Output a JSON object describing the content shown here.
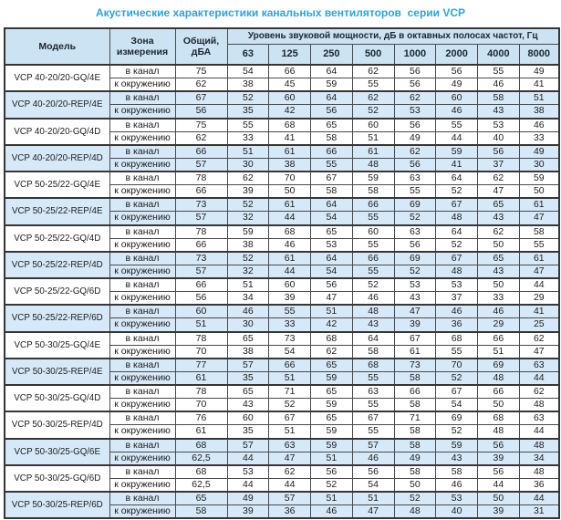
{
  "title": "Акустические характеристики канальных вентиляторов  серии VCP",
  "colors": {
    "title_text": "#2aa4de",
    "header_background": "#cbe3f3",
    "shaded_row_background": "#d6e9f8",
    "plain_row_background": "#ffffff",
    "border": "#4a4a4a",
    "text": "#1d1d1d"
  },
  "table": {
    "headers": {
      "model": "Модель",
      "zone": "Зона измерения",
      "total": "Общий, дБА",
      "band_title": "Уровень звуковой мощности, дБ в октавных полосах частот, Гц",
      "frequencies": [
        "63",
        "125",
        "250",
        "500",
        "1000",
        "2000",
        "4000",
        "8000"
      ]
    },
    "zone_labels": {
      "duct": "в канал",
      "ambient": "к окружению"
    },
    "rows": [
      {
        "model": "VCP 40-20/20-GQ/4E",
        "shaded": false,
        "duct": {
          "total": "75",
          "bands": [
            "54",
            "66",
            "64",
            "62",
            "56",
            "56",
            "55",
            "49"
          ]
        },
        "ambient": {
          "total": "62",
          "bands": [
            "38",
            "45",
            "59",
            "55",
            "56",
            "49",
            "46",
            "41"
          ]
        }
      },
      {
        "model": "VCP 40-20/20-REP/4E",
        "shaded": true,
        "duct": {
          "total": "67",
          "bands": [
            "52",
            "60",
            "64",
            "62",
            "62",
            "60",
            "58",
            "51"
          ]
        },
        "ambient": {
          "total": "56",
          "bands": [
            "35",
            "42",
            "56",
            "52",
            "53",
            "46",
            "43",
            "38"
          ]
        }
      },
      {
        "model": "VCP 40-20/20-GQ/4D",
        "shaded": false,
        "duct": {
          "total": "75",
          "bands": [
            "55",
            "68",
            "65",
            "60",
            "56",
            "55",
            "53",
            "46"
          ]
        },
        "ambient": {
          "total": "62",
          "bands": [
            "33",
            "41",
            "58",
            "51",
            "49",
            "44",
            "40",
            "33"
          ]
        }
      },
      {
        "model": "VCP 40-20/20-REP/4D",
        "shaded": true,
        "duct": {
          "total": "66",
          "bands": [
            "51",
            "61",
            "66",
            "61",
            "62",
            "59",
            "56",
            "49"
          ]
        },
        "ambient": {
          "total": "57",
          "bands": [
            "30",
            "38",
            "55",
            "48",
            "56",
            "41",
            "37",
            "30"
          ]
        }
      },
      {
        "model": "VCP 50-25/22-GQ/4E",
        "shaded": false,
        "duct": {
          "total": "78",
          "bands": [
            "62",
            "70",
            "67",
            "59",
            "63",
            "64",
            "62",
            "59"
          ]
        },
        "ambient": {
          "total": "66",
          "bands": [
            "39",
            "50",
            "58",
            "58",
            "55",
            "52",
            "47",
            "50"
          ]
        }
      },
      {
        "model": "VCP 50-25/22-REP/4E",
        "shaded": true,
        "duct": {
          "total": "73",
          "bands": [
            "52",
            "61",
            "64",
            "66",
            "69",
            "67",
            "65",
            "61"
          ]
        },
        "ambient": {
          "total": "57",
          "bands": [
            "32",
            "44",
            "54",
            "55",
            "52",
            "48",
            "43",
            "47"
          ]
        }
      },
      {
        "model": "VCP 50-25/22-GQ/4D",
        "shaded": false,
        "duct": {
          "total": "78",
          "bands": [
            "59",
            "68",
            "65",
            "60",
            "63",
            "64",
            "62",
            "58"
          ]
        },
        "ambient": {
          "total": "66",
          "bands": [
            "38",
            "46",
            "53",
            "55",
            "56",
            "52",
            "50",
            "55"
          ]
        }
      },
      {
        "model": "VCP 50-25/22-REP/4D",
        "shaded": true,
        "duct": {
          "total": "73",
          "bands": [
            "52",
            "61",
            "64",
            "66",
            "69",
            "67",
            "65",
            "61"
          ]
        },
        "ambient": {
          "total": "57",
          "bands": [
            "32",
            "44",
            "54",
            "55",
            "52",
            "48",
            "43",
            "47"
          ]
        }
      },
      {
        "model": "VCP 50-25/22-GQ/6D",
        "shaded": false,
        "duct": {
          "total": "66",
          "bands": [
            "51",
            "60",
            "56",
            "52",
            "53",
            "53",
            "50",
            "44"
          ]
        },
        "ambient": {
          "total": "56",
          "bands": [
            "34",
            "39",
            "47",
            "46",
            "43",
            "37",
            "33",
            "29"
          ]
        }
      },
      {
        "model": "VCP 50-25/22-REP/6D",
        "shaded": true,
        "duct": {
          "total": "60",
          "bands": [
            "46",
            "55",
            "51",
            "48",
            "47",
            "46",
            "46",
            "41"
          ]
        },
        "ambient": {
          "total": "51",
          "bands": [
            "30",
            "33",
            "42",
            "43",
            "39",
            "36",
            "29",
            "25"
          ]
        }
      },
      {
        "model": "VCP 50-30/25-GQ/4E",
        "shaded": false,
        "duct": {
          "total": "78",
          "bands": [
            "65",
            "73",
            "68",
            "64",
            "67",
            "68",
            "66",
            "62"
          ]
        },
        "ambient": {
          "total": "70",
          "bands": [
            "38",
            "54",
            "62",
            "58",
            "61",
            "55",
            "51",
            "47"
          ]
        }
      },
      {
        "model": "VCP 50-30/25-REP/4E",
        "shaded": true,
        "duct": {
          "total": "77",
          "bands": [
            "57",
            "66",
            "65",
            "68",
            "73",
            "70",
            "69",
            "63"
          ]
        },
        "ambient": {
          "total": "61",
          "bands": [
            "35",
            "51",
            "59",
            "55",
            "58",
            "52",
            "48",
            "44"
          ]
        }
      },
      {
        "model": "VCP 50-30/25-GQ/4D",
        "shaded": false,
        "duct": {
          "total": "78",
          "bands": [
            "65",
            "71",
            "65",
            "63",
            "66",
            "67",
            "66",
            "62"
          ]
        },
        "ambient": {
          "total": "70",
          "bands": [
            "43",
            "52",
            "59",
            "55",
            "58",
            "54",
            "50",
            "48"
          ]
        }
      },
      {
        "model": "VCP 50-30/25-REP/4D",
        "shaded": false,
        "duct": {
          "total": "76",
          "bands": [
            "60",
            "67",
            "65",
            "67",
            "71",
            "69",
            "68",
            "63"
          ]
        },
        "ambient": {
          "total": "61",
          "bands": [
            "35",
            "51",
            "59",
            "55",
            "58",
            "52",
            "48",
            "44"
          ]
        }
      },
      {
        "model": "VCP 50-30/25-GQ/6E",
        "shaded": true,
        "duct": {
          "total": "68",
          "bands": [
            "57",
            "63",
            "59",
            "57",
            "58",
            "59",
            "56",
            "48"
          ]
        },
        "ambient": {
          "total": "62,5",
          "bands": [
            "44",
            "47",
            "51",
            "46",
            "49",
            "43",
            "39",
            "34"
          ]
        }
      },
      {
        "model": "VCP 50-30/25-GQ/6D",
        "shaded": false,
        "duct": {
          "total": "68",
          "bands": [
            "53",
            "62",
            "56",
            "56",
            "58",
            "58",
            "56",
            "48"
          ]
        },
        "ambient": {
          "total": "62,5",
          "bands": [
            "44",
            "44",
            "52",
            "54",
            "50",
            "46",
            "44",
            "36"
          ]
        }
      },
      {
        "model": "VCP 50-30/25-REP/6D",
        "shaded": true,
        "duct": {
          "total": "65",
          "bands": [
            "49",
            "57",
            "51",
            "51",
            "52",
            "53",
            "50",
            "44"
          ]
        },
        "ambient": {
          "total": "58",
          "bands": [
            "39",
            "36",
            "46",
            "47",
            "48",
            "40",
            "39",
            "31"
          ]
        }
      }
    ]
  }
}
